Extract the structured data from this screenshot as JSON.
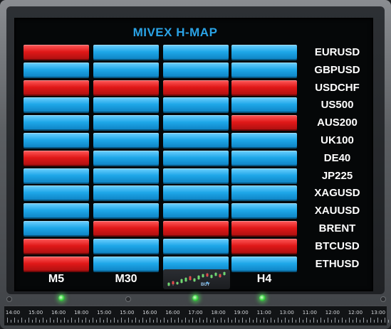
{
  "panel": {
    "title": "MIVEX H-MAP",
    "colors": {
      "buy": "#1ea7e8",
      "sell": "#e01818",
      "title": "#2aa3e6",
      "led": "#43d84a"
    }
  },
  "timeframes": [
    "M5",
    "M30",
    "",
    "H4"
  ],
  "mini_chart": {
    "label": "BUY"
  },
  "rows": [
    {
      "symbol": "EURUSD",
      "signals": [
        "sell",
        "buy",
        "buy",
        "buy"
      ]
    },
    {
      "symbol": "GBPUSD",
      "signals": [
        "buy",
        "buy",
        "buy",
        "buy"
      ]
    },
    {
      "symbol": "USDCHF",
      "signals": [
        "sell",
        "sell",
        "sell",
        "sell"
      ]
    },
    {
      "symbol": "US500",
      "signals": [
        "buy",
        "buy",
        "buy",
        "buy"
      ]
    },
    {
      "symbol": "AUS200",
      "signals": [
        "buy",
        "buy",
        "buy",
        "sell"
      ]
    },
    {
      "symbol": "UK100",
      "signals": [
        "buy",
        "buy",
        "buy",
        "buy"
      ]
    },
    {
      "symbol": "DE40",
      "signals": [
        "sell",
        "buy",
        "buy",
        "buy"
      ]
    },
    {
      "symbol": "JP225",
      "signals": [
        "buy",
        "buy",
        "buy",
        "buy"
      ]
    },
    {
      "symbol": "XAGUSD",
      "signals": [
        "buy",
        "buy",
        "buy",
        "buy"
      ]
    },
    {
      "symbol": "XAUUSD",
      "signals": [
        "buy",
        "buy",
        "buy",
        "buy"
      ]
    },
    {
      "symbol": "BRENT",
      "signals": [
        "buy",
        "sell",
        "sell",
        "sell"
      ]
    },
    {
      "symbol": "BTCUSD",
      "signals": [
        "sell",
        "buy",
        "buy",
        "sell"
      ]
    },
    {
      "symbol": "ETHUSD",
      "signals": [
        "sell",
        "buy",
        "buy",
        "buy"
      ]
    }
  ],
  "time_axis": [
    "14:00",
    "15:00",
    "16:00",
    "18:00",
    "15:00",
    "15:00",
    "16:00",
    "16:00",
    "17:00",
    "18:00",
    "19:00",
    "11:00",
    "13:00",
    "11:00",
    "12:00",
    "12:00",
    "13:00"
  ]
}
